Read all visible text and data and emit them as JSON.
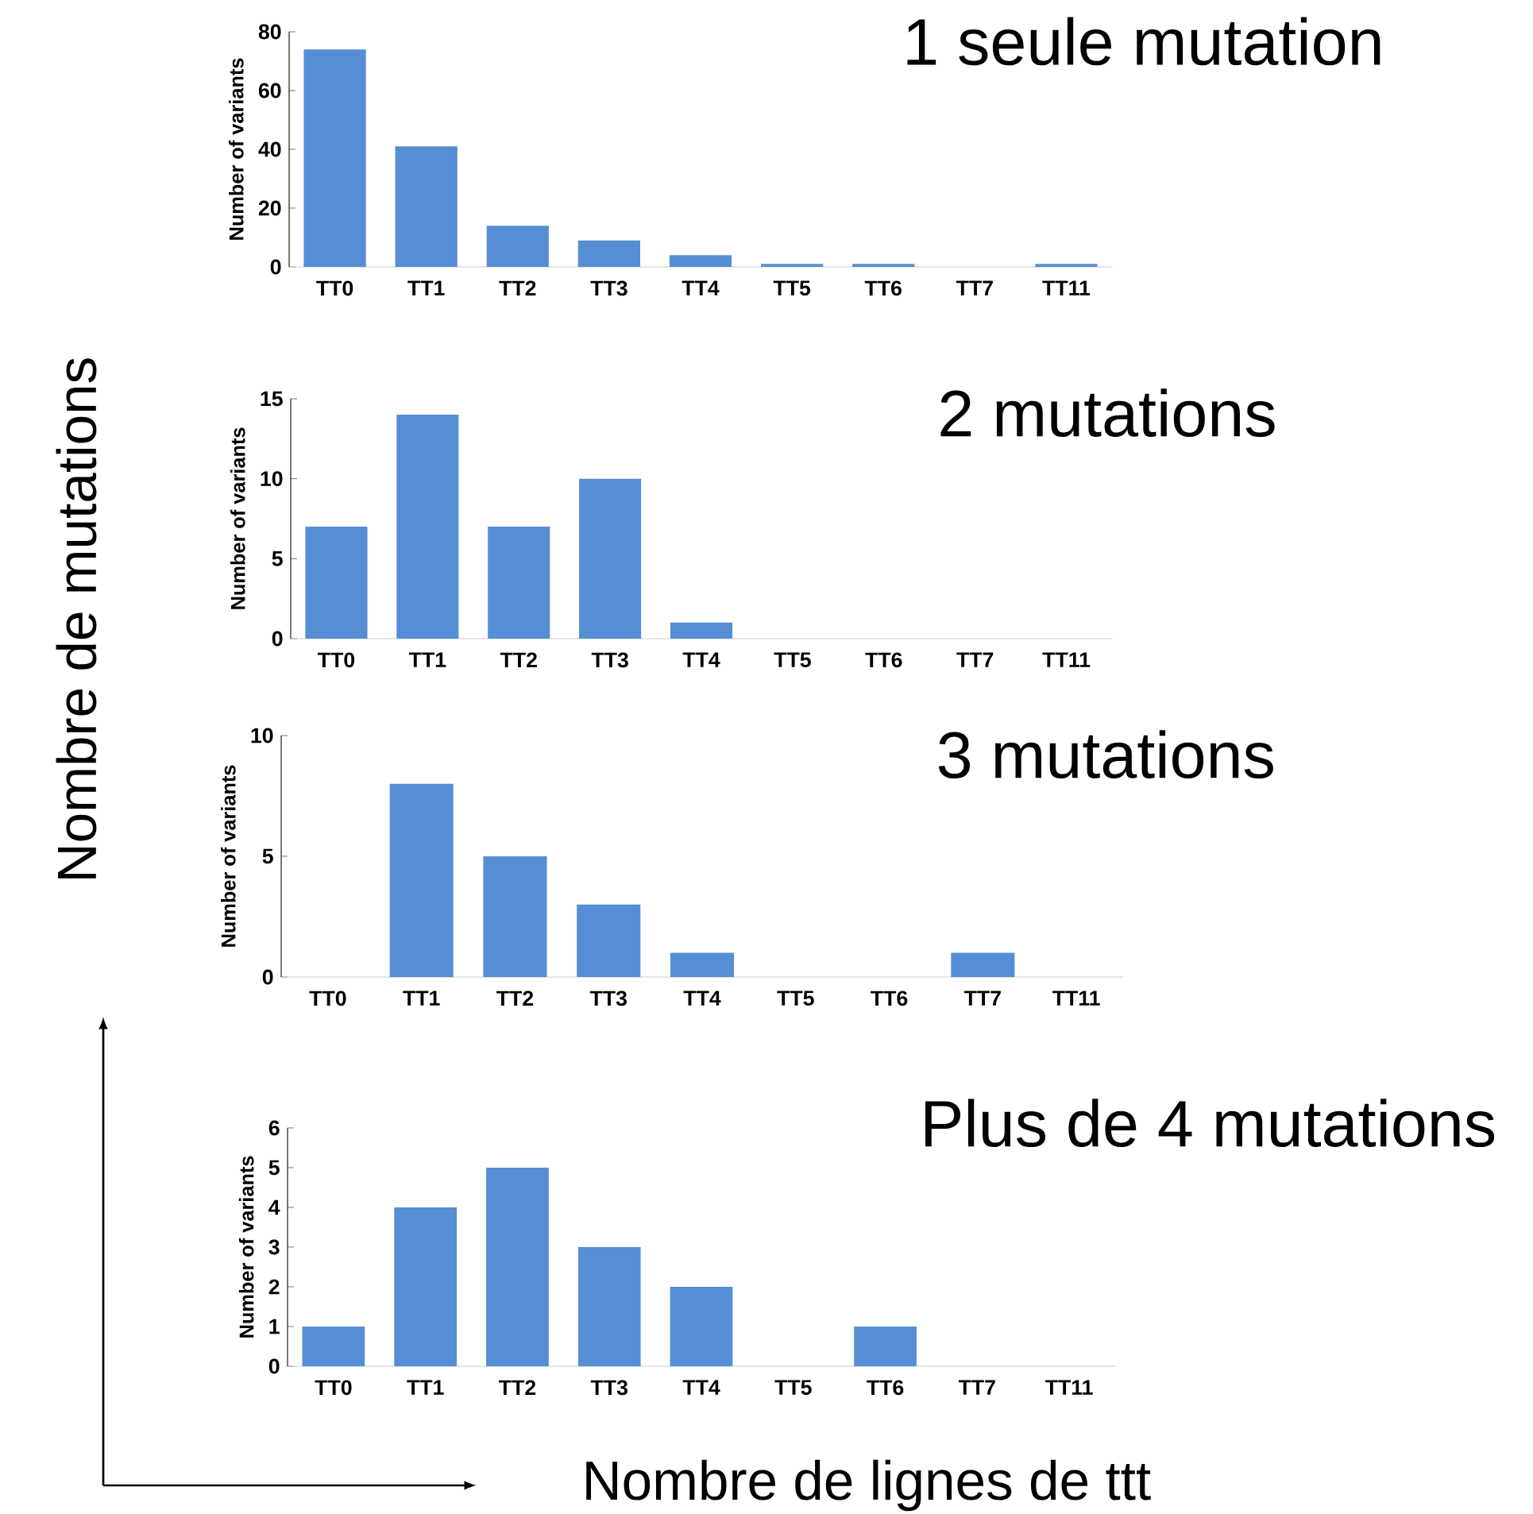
{
  "chart_data": [
    {
      "type": "bar",
      "title": "1 seule mutation",
      "ylabel": "Number of variants",
      "categories": [
        "TT0",
        "TT1",
        "TT2",
        "TT3",
        "TT4",
        "TT5",
        "TT6",
        "TT7",
        "TT11"
      ],
      "values": [
        74,
        41,
        14,
        9,
        4,
        1,
        1,
        0,
        1
      ],
      "color": "#558ed5",
      "ylim": [
        0,
        80
      ],
      "yticks": [
        0,
        20,
        40,
        60,
        80
      ],
      "grid": false
    },
    {
      "type": "bar",
      "title": "2 mutations",
      "ylabel": "Number of variants",
      "categories": [
        "TT0",
        "TT1",
        "TT2",
        "TT3",
        "TT4",
        "TT5",
        "TT6",
        "TT7",
        "TT11"
      ],
      "values": [
        7,
        14,
        7,
        10,
        1,
        0,
        0,
        0,
        0
      ],
      "color": "#558ed5",
      "ylim": [
        0,
        15
      ],
      "yticks": [
        0,
        5,
        10,
        15
      ],
      "grid": false
    },
    {
      "type": "bar",
      "title": "3 mutations",
      "ylabel": "Number of variants",
      "categories": [
        "TT0",
        "TT1",
        "TT2",
        "TT3",
        "TT4",
        "TT5",
        "TT6",
        "TT7",
        "TT11"
      ],
      "values": [
        0,
        8,
        5,
        3,
        1,
        0,
        0,
        1,
        0
      ],
      "color": "#558ed5",
      "ylim": [
        0,
        10
      ],
      "yticks": [
        0,
        5,
        10
      ],
      "grid": false
    },
    {
      "type": "bar",
      "title": "Plus de 4 mutations",
      "ylabel": "Number of variants",
      "categories": [
        "TT0",
        "TT1",
        "TT2",
        "TT3",
        "TT4",
        "TT5",
        "TT6",
        "TT7",
        "TT11"
      ],
      "values": [
        1,
        4,
        5,
        3,
        2,
        0,
        1,
        0,
        0
      ],
      "color": "#558ed5",
      "ylim": [
        0,
        6
      ],
      "yticks": [
        0,
        1,
        2,
        3,
        4,
        5,
        6
      ],
      "grid": false
    },
    {
      "type": "other",
      "xlabel": "Nombre de lignes de ttt",
      "ylabel": "Nombre de mutations"
    }
  ]
}
